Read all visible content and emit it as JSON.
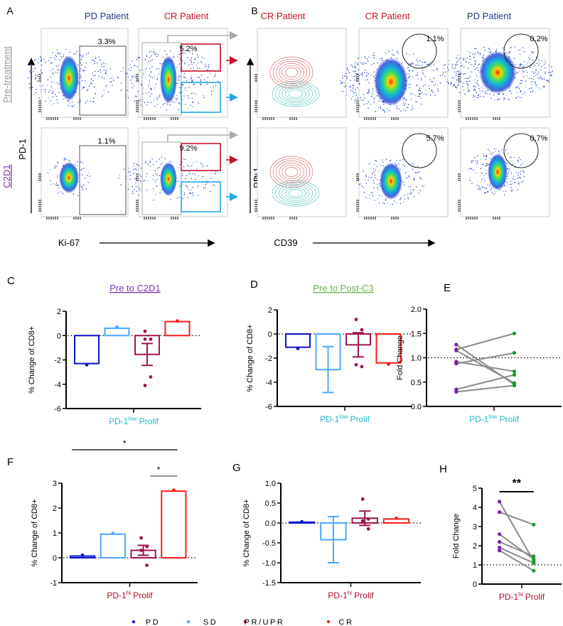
{
  "colors": {
    "PD": "#0a14c8",
    "SD": "#4aa8ff",
    "PR/UPR": "#a0144e",
    "CR": "#ff1a1a",
    "pre": "#7a1fa8",
    "post": "#1a9a2a",
    "line": "#8c8c8c",
    "navy": "#1f3a7a",
    "crRed": "#c8102e",
    "purple": "#7a35b0",
    "green": "#6ab04c",
    "teal": "#22b8c8",
    "darkred": "#b01020"
  },
  "panel_a": {
    "label": "A",
    "col_titles": [
      "PD Patient",
      "CR Patient"
    ],
    "row_labels": [
      "Pre-treatment",
      "C2D1"
    ],
    "y_axis": "PD-1",
    "x_axis": "Ki-67",
    "gates": [
      [
        "3.3%",
        "5.2%"
      ],
      [
        "1.1%",
        "9.2%"
      ]
    ]
  },
  "panel_b": {
    "label": "B",
    "col_titles": [
      "CR Patient",
      "CR Patient",
      "PD Patient"
    ],
    "y_axis": "PD-1",
    "x_axis": "CD39",
    "gates": [
      [
        "1.1%",
        "0.2%"
      ],
      [
        "5.7%",
        "0.7%"
      ]
    ]
  },
  "legend": [
    "PD",
    "SD",
    "PR/UPR",
    "CR"
  ],
  "chart_data": [
    {
      "panel": "C",
      "type": "bar",
      "title": "Pre to C2D1",
      "ylabel": "% Change of CD8+",
      "xlabel": "PD-1",
      "xlabel_sup": "low",
      "xlabel_suffix": " Prolif",
      "ylim": [
        -6,
        2
      ],
      "yticks": [
        2,
        0,
        -2,
        -4,
        -6
      ],
      "categories": [
        "PD",
        "SD",
        "PR/UPR",
        "CR"
      ],
      "values": [
        -2.3,
        0.6,
        -1.55,
        1.15
      ],
      "sem": [
        0,
        0,
        0.9,
        0
      ],
      "points": [
        [
          -2.4
        ],
        [
          0.7
        ],
        [
          0.35,
          -0.3,
          -0.3,
          -3.4,
          -4.1
        ],
        [
          1.2
        ]
      ]
    },
    {
      "panel": "D",
      "type": "bar",
      "title": "Pre to Post-C3",
      "ylabel": "% Change of CD8+",
      "xlabel": "PD-1",
      "xlabel_sup": "low",
      "xlabel_suffix": " Prolif",
      "ylim": [
        -6,
        2
      ],
      "yticks": [
        2,
        0,
        -2,
        -4,
        -6
      ],
      "categories": [
        "PD",
        "SD",
        "PR/UPR",
        "CR"
      ],
      "values": [
        -1.1,
        -2.95,
        -0.9,
        -2.4
      ],
      "sem": [
        0,
        1.9,
        1.0,
        0
      ],
      "points": [
        [
          -1.2
        ],
        [],
        [
          1.2,
          0.35,
          -2.55,
          -2.7
        ],
        [
          -2.5
        ]
      ]
    },
    {
      "panel": "E",
      "type": "line",
      "ylabel": "Fold Change",
      "xlabel": "PD-1",
      "xlabel_sup": "low",
      "xlabel_suffix": " Prolif",
      "ylim": [
        0,
        2
      ],
      "yticks": [
        2.0,
        1.5,
        1.0,
        0.5,
        0.0
      ],
      "reference": 1.0,
      "pairs": [
        [
          1.27,
          0.45
        ],
        [
          1.17,
          1.5
        ],
        [
          1.15,
          0.48
        ],
        [
          0.92,
          0.72
        ],
        [
          0.88,
          1.1
        ],
        [
          0.35,
          0.65
        ],
        [
          0.3,
          0.43
        ]
      ]
    },
    {
      "panel": "F",
      "type": "bar",
      "ylabel": "% Change of CD8+",
      "xlabel": "PD-1",
      "xlabel_sup": "hi",
      "xlabel_suffix": " Prolif",
      "ylim": [
        -1,
        3
      ],
      "yticks": [
        3,
        2,
        1,
        0,
        -1
      ],
      "categories": [
        "PD",
        "SD",
        "PR/UPR",
        "CR"
      ],
      "values": [
        0.07,
        0.95,
        0.3,
        2.68
      ],
      "sem": [
        0,
        0,
        0.2,
        0
      ],
      "points": [
        [
          0.1
        ],
        [
          0.98
        ],
        [
          0.8,
          0.45,
          0.3,
          -0.3
        ],
        [
          2.72
        ]
      ],
      "significance": [
        {
          "from": 0,
          "to": 3,
          "label": "*"
        },
        {
          "from": 2,
          "to": 3,
          "label": "*"
        }
      ]
    },
    {
      "panel": "G",
      "type": "bar",
      "ylabel": "% Change of CD8+",
      "xlabel": "PD-1",
      "xlabel_sup": "hi",
      "xlabel_suffix": " Prolif",
      "ylim": [
        -1.5,
        1.0
      ],
      "yticks": [
        1.0,
        0.5,
        0.0,
        -0.5,
        -1.0,
        -1.5
      ],
      "categories": [
        "PD",
        "SD",
        "PR/UPR",
        "CR"
      ],
      "values": [
        0.02,
        -0.42,
        0.12,
        0.1
      ],
      "sem": [
        0,
        0.58,
        0.18,
        0
      ],
      "points": [
        [
          0.03
        ],
        [],
        [
          0.6,
          0.1,
          0.05,
          -0.15
        ],
        [
          0.12
        ]
      ]
    },
    {
      "panel": "H",
      "type": "line",
      "ylabel": "Fold Change",
      "xlabel": "PD-1",
      "xlabel_sup": "hi",
      "xlabel_suffix": " Prolif",
      "ylim": [
        0,
        5
      ],
      "yticks": [
        5,
        4,
        3,
        2,
        1,
        0
      ],
      "reference": 1,
      "pairs": [
        [
          4.3,
          1.2
        ],
        [
          3.75,
          3.1
        ],
        [
          2.6,
          1.3
        ],
        [
          2.2,
          1.45
        ],
        [
          1.9,
          1.1
        ],
        [
          1.75,
          0.7
        ]
      ],
      "significance": [
        {
          "label": "**"
        }
      ]
    }
  ]
}
